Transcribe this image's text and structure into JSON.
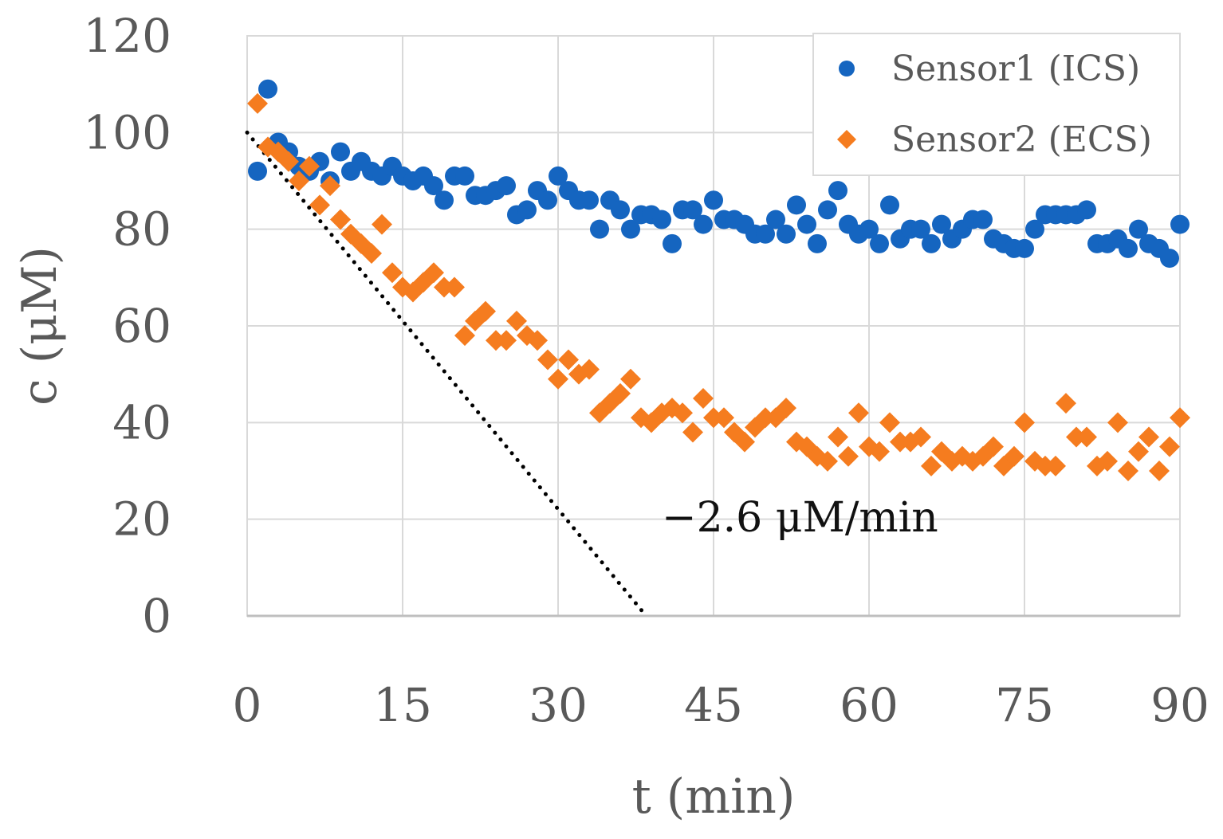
{
  "chart_data": {
    "type": "scatter",
    "title": "",
    "xlabel": "t (min)",
    "ylabel": "c (μM)",
    "xlim": [
      0,
      90
    ],
    "ylim": [
      0,
      120
    ],
    "xticks": [
      0,
      15,
      30,
      45,
      60,
      75,
      90
    ],
    "yticks": [
      0,
      20,
      40,
      60,
      80,
      100,
      120
    ],
    "grid": true,
    "legend_position": "top-right",
    "series": [
      {
        "name": "Sensor1 (ICS)",
        "marker": "circle",
        "color": "#1565C0",
        "x": [
          1,
          2,
          3,
          4,
          5,
          6,
          7,
          8,
          9,
          10,
          11,
          12,
          13,
          14,
          15,
          16,
          17,
          18,
          19,
          20,
          21,
          22,
          23,
          24,
          25,
          26,
          27,
          28,
          29,
          30,
          31,
          32,
          33,
          34,
          35,
          36,
          37,
          38,
          39,
          40,
          41,
          42,
          43,
          44,
          45,
          46,
          47,
          48,
          49,
          50,
          51,
          52,
          53,
          54,
          55,
          56,
          57,
          58,
          59,
          60,
          61,
          62,
          63,
          64,
          65,
          66,
          67,
          68,
          69,
          70,
          71,
          72,
          73,
          74,
          75,
          76,
          77,
          78,
          79,
          80,
          81,
          82,
          83,
          84,
          85,
          86,
          87,
          88,
          89,
          90
        ],
        "y": [
          92,
          109,
          98,
          96,
          93,
          92,
          94,
          90,
          96,
          92,
          94,
          92,
          91,
          93,
          91,
          90,
          91,
          89,
          86,
          91,
          91,
          87,
          87,
          88,
          89,
          83,
          84,
          88,
          86,
          91,
          88,
          86,
          86,
          80,
          86,
          84,
          80,
          83,
          83,
          82,
          77,
          84,
          84,
          81,
          86,
          82,
          82,
          81,
          79,
          79,
          82,
          79,
          85,
          81,
          77,
          84,
          88,
          81,
          79,
          80,
          77,
          85,
          78,
          80,
          80,
          77,
          81,
          78,
          80,
          82,
          82,
          78,
          77,
          76,
          76,
          80,
          83,
          83,
          83,
          83,
          84,
          77,
          77,
          78,
          76,
          80,
          77,
          76,
          74,
          81
        ]
      },
      {
        "name": "Sensor2 (ECS)",
        "marker": "diamond",
        "color": "#F57C1F",
        "x": [
          1,
          2,
          3,
          4,
          5,
          6,
          7,
          8,
          9,
          10,
          11,
          12,
          13,
          14,
          15,
          16,
          17,
          18,
          19,
          20,
          21,
          22,
          23,
          24,
          25,
          26,
          27,
          28,
          29,
          30,
          31,
          32,
          33,
          34,
          35,
          36,
          37,
          38,
          39,
          40,
          41,
          42,
          43,
          44,
          45,
          46,
          47,
          48,
          49,
          50,
          51,
          52,
          53,
          54,
          55,
          56,
          57,
          58,
          59,
          60,
          61,
          62,
          63,
          64,
          65,
          66,
          67,
          68,
          69,
          70,
          71,
          72,
          73,
          74,
          75,
          76,
          77,
          78,
          79,
          80,
          81,
          82,
          83,
          84,
          85,
          86,
          87,
          88,
          89,
          90
        ],
        "y": [
          106,
          97,
          96,
          94,
          90,
          93,
          85,
          89,
          82,
          79,
          77,
          75,
          81,
          71,
          68,
          67,
          69,
          71,
          68,
          68,
          58,
          61,
          63,
          57,
          57,
          61,
          58,
          57,
          53,
          49,
          53,
          50,
          51,
          42,
          44,
          46,
          49,
          41,
          40,
          42,
          43,
          42,
          38,
          45,
          41,
          41,
          38,
          36,
          39,
          41,
          41,
          43,
          36,
          35,
          33,
          32,
          37,
          33,
          42,
          35,
          34,
          40,
          36,
          36,
          37,
          31,
          34,
          32,
          33,
          32,
          33,
          35,
          31,
          33,
          40,
          32,
          31,
          31,
          44,
          37,
          37,
          31,
          32,
          40,
          30,
          34,
          37,
          30,
          35,
          41
        ]
      }
    ],
    "annotations": [
      {
        "type": "trend-line",
        "style": "dotted",
        "color": "#000000",
        "x": [
          0,
          38.5
        ],
        "y": [
          100,
          0
        ],
        "label": "−2.6 μM/min",
        "label_x": 40,
        "label_y": 17.5
      }
    ]
  }
}
